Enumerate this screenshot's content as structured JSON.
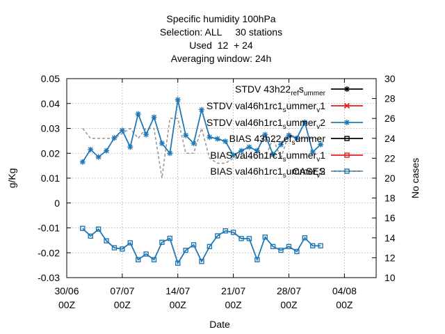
{
  "chart_data": {
    "type": "line",
    "title_lines": [
      "Specific humidity 100hPa",
      "Selection: ALL     30 stations",
      "Used  12  + 24",
      "Averaging window: 24h"
    ],
    "xlabel": "Date",
    "ylabel": "g/Kg",
    "y2label": "No cases",
    "ylim": [
      -0.03,
      0.05
    ],
    "y2lim": [
      10,
      30
    ],
    "xlim_days": [
      0,
      39
    ],
    "x_ticks": [
      {
        "day": 0,
        "line1": "30/06",
        "line2": "00Z"
      },
      {
        "day": 7,
        "line1": "07/07",
        "line2": "00Z"
      },
      {
        "day": 14,
        "line1": "14/07",
        "line2": "00Z"
      },
      {
        "day": 21,
        "line1": "21/07",
        "line2": "00Z"
      },
      {
        "day": 28,
        "line1": "28/07",
        "line2": "00Z"
      },
      {
        "day": 35,
        "line1": "04/08",
        "line2": "00Z"
      }
    ],
    "y_ticks": [
      "0.05",
      "0.04",
      "0.03",
      "0.02",
      "0.01",
      "0",
      "-0.01",
      "-0.02",
      "-0.03"
    ],
    "y2_ticks": [
      "30",
      "28",
      "26",
      "24",
      "22",
      "20",
      "18",
      "16",
      "14",
      "12",
      "10"
    ],
    "legend_placement": "top-right",
    "series": [
      {
        "name": "STDV 43h22_ref_summer",
        "legend": [
          "STDV 43h22",
          "ref",
          "s",
          "ummer"
        ],
        "color": "#000000",
        "marker": "star",
        "axis": "y1",
        "x": [],
        "y": []
      },
      {
        "name": "STDV val46h1rc1_summer_v1",
        "legend": [
          "STDV val46h1rc1",
          "s",
          "ummer",
          "v",
          "1"
        ],
        "color": "#e41a1c",
        "marker": "x",
        "axis": "y1",
        "x": [],
        "y": []
      },
      {
        "name": "STDV val46h1rc1_summer_v2",
        "legend": [
          "STDV val46h1rc1",
          "s",
          "ummer",
          "v",
          "2"
        ],
        "color": "#1f77b4",
        "marker": "star",
        "axis": "y1",
        "x": [
          2,
          3,
          4,
          5,
          6,
          7,
          8,
          9,
          10,
          11,
          12,
          13,
          14,
          15,
          16,
          17,
          18,
          19,
          20,
          21,
          22,
          23,
          24,
          25,
          26,
          27,
          28,
          29,
          30,
          31,
          32
        ],
        "y": [
          0.0165,
          0.0215,
          0.0185,
          0.021,
          0.0262,
          0.0292,
          0.0225,
          0.0358,
          0.0275,
          0.0345,
          0.024,
          0.02,
          0.0415,
          0.0272,
          0.024,
          0.0375,
          0.0265,
          0.0258,
          0.0248,
          0.0192,
          0.021,
          0.0225,
          0.021,
          0.0275,
          0.0195,
          0.0235,
          0.0272,
          0.026,
          0.0325,
          0.0205,
          0.0235
        ]
      },
      {
        "name": "BIAS 43h22_ref_summer",
        "legend": [
          "BIAS 43h22",
          "r",
          "ef",
          "s",
          "ummer"
        ],
        "color": "#000000",
        "marker": "square",
        "axis": "y1",
        "x": [],
        "y": []
      },
      {
        "name": "BIAS val46h1rc1_summer_v1",
        "legend": [
          "BIAS val46h1rc1",
          "s",
          "ummer",
          "v",
          "1"
        ],
        "color": "#e41a1c",
        "marker": "square",
        "axis": "y1",
        "x": [],
        "y": []
      },
      {
        "name": "BIAS val46h1rc1_summer_v2",
        "legend": [
          "BIAS val46h1rc1",
          "s",
          "ummer",
          "v",
          "2"
        ],
        "color": "#1f77b4",
        "marker": "square",
        "axis": "y1",
        "x": [
          2,
          3,
          4,
          5,
          6,
          7,
          8,
          9,
          10,
          11,
          12,
          13,
          14,
          15,
          16,
          17,
          18,
          19,
          20,
          21,
          22,
          23,
          24,
          25,
          26,
          27,
          28,
          29,
          30,
          31,
          32
        ],
        "y": [
          -0.0102,
          -0.0133,
          -0.0105,
          -0.0152,
          -0.018,
          -0.0185,
          -0.016,
          -0.0228,
          -0.0205,
          -0.0228,
          -0.0158,
          -0.0142,
          -0.0242,
          -0.019,
          -0.0168,
          -0.0235,
          -0.0175,
          -0.0132,
          -0.0112,
          -0.0118,
          -0.0143,
          -0.0143,
          -0.0228,
          -0.0137,
          -0.0175,
          -0.019,
          -0.0175,
          -0.0195,
          -0.014,
          -0.0172,
          -0.0172
        ]
      },
      {
        "name": "CASES",
        "legend": [
          "CASES"
        ],
        "color": "#999999",
        "marker": "none",
        "dashed": true,
        "axis": "y2",
        "x": [
          2,
          3,
          4,
          5,
          6,
          7,
          8,
          9,
          10,
          11,
          12,
          13,
          14,
          15,
          16,
          17,
          18,
          19,
          20,
          21,
          22,
          23,
          24,
          25,
          26,
          27,
          28,
          29,
          30,
          31,
          32
        ],
        "y": [
          25,
          24,
          24,
          24,
          24,
          24.5,
          25,
          24,
          25,
          25,
          20,
          26,
          26,
          22.5,
          22.5,
          25,
          22,
          21.5,
          21.5,
          22,
          22,
          22,
          22,
          22,
          24,
          22,
          24.5,
          24,
          24,
          24,
          24
        ]
      }
    ]
  }
}
